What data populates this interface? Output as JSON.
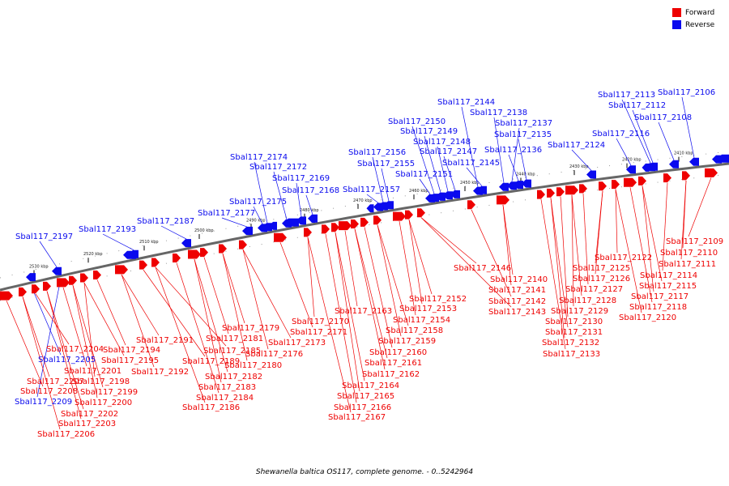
{
  "colors": {
    "forward": "#ee0000",
    "reverse": "#0a0aee",
    "backbone": "#666666"
  },
  "legend": [
    {
      "label": "Forward",
      "color": "#ee0000",
      "icon": "red-square-icon"
    },
    {
      "label": "Reverse",
      "color": "#0a0aee",
      "icon": "blue-square-icon"
    }
  ],
  "caption": "Shewanella baltica OS117, complete genome. - 0..5242964",
  "scale": {
    "unit": "kbp",
    "ticks": [
      "2410 kbp",
      "2420 kbp",
      "2430 kbp",
      "2440 kbp",
      "2450 kbp",
      "2460 kbp",
      "2470 kbp",
      "2480 kbp",
      "2490 kbp",
      "2500 kbp",
      "2510 kbp",
      "2520 kbp",
      "2530 kbp"
    ]
  },
  "reverse_genes": [
    "Sbal117_2106",
    "Sbal117_2108",
    "Sbal117_2112",
    "Sbal117_2113",
    "Sbal117_2116",
    "Sbal117_2124",
    "Sbal117_2135",
    "Sbal117_2136",
    "Sbal117_2137",
    "Sbal117_2138",
    "Sbal117_2144",
    "Sbal117_2145",
    "Sbal117_2147",
    "Sbal117_2148",
    "Sbal117_2149",
    "Sbal117_2150",
    "Sbal117_2151",
    "Sbal117_2155",
    "Sbal117_2156",
    "Sbal117_2157",
    "Sbal117_2168",
    "Sbal117_2169",
    "Sbal117_2172",
    "Sbal117_2174",
    "Sbal117_2175",
    "Sbal117_2177",
    "Sbal117_2187",
    "Sbal117_2193",
    "Sbal117_2197"
  ],
  "reverse_genes_below": [
    "Sbal117_2205",
    "Sbal117_2209"
  ],
  "forward_genes": [
    "Sbal117_2109",
    "Sbal117_2110",
    "Sbal117_2111",
    "Sbal117_2114",
    "Sbal117_2115",
    "Sbal117_2117",
    "Sbal117_2118",
    "Sbal117_2120",
    "Sbal117_2122",
    "Sbal117_2125",
    "Sbal117_2126",
    "Sbal117_2127",
    "Sbal117_2128",
    "Sbal117_2129",
    "Sbal117_2130",
    "Sbal117_2131",
    "Sbal117_2132",
    "Sbal117_2133",
    "Sbal117_2140",
    "Sbal117_2141",
    "Sbal117_2142",
    "Sbal117_2143",
    "Sbal117_2146",
    "Sbal117_2152",
    "Sbal117_2153",
    "Sbal117_2154",
    "Sbal117_2158",
    "Sbal117_2159",
    "Sbal117_2160",
    "Sbal117_2161",
    "Sbal117_2162",
    "Sbal117_2163",
    "Sbal117_2164",
    "Sbal117_2165",
    "Sbal117_2166",
    "Sbal117_2167",
    "Sbal117_2170",
    "Sbal117_2171",
    "Sbal117_2173",
    "Sbal117_2176",
    "Sbal117_2179",
    "Sbal117_2180",
    "Sbal117_2181",
    "Sbal117_2182",
    "Sbal117_2183",
    "Sbal117_2184",
    "Sbal117_2185",
    "Sbal117_2186",
    "Sbal117_2189",
    "Sbal117_2191",
    "Sbal117_2192",
    "Sbal117_2194",
    "Sbal117_2195",
    "Sbal117_2198",
    "Sbal117_2199",
    "Sbal117_2200",
    "Sbal117_2201",
    "Sbal117_2202",
    "Sbal117_2203",
    "Sbal117_2204",
    "Sbal117_2206",
    "Sbal117_2207",
    "Sbal117_2208"
  ]
}
